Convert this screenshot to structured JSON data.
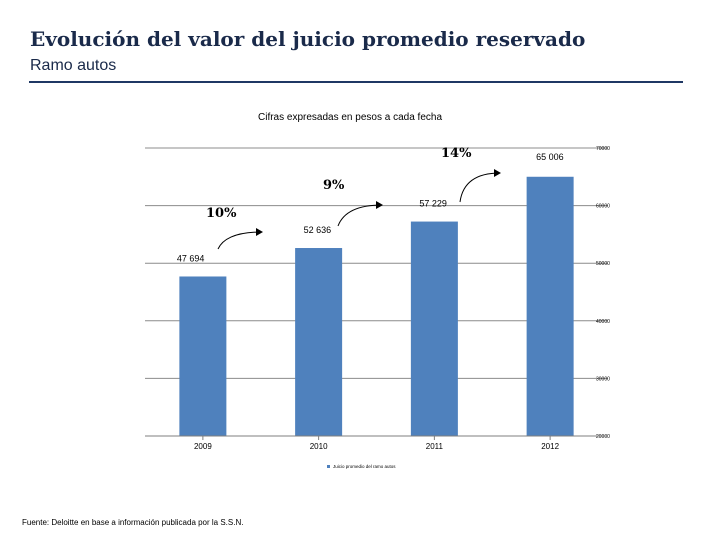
{
  "header": {
    "title": "Evolución del valor del juicio promedio reservado",
    "subtitle": "Ramo autos"
  },
  "footer": {
    "source": "Fuente: Deloitte en base a información publicada por la S.S.N."
  },
  "chart_data": {
    "type": "bar",
    "title": "Cifras expresadas en pesos a cada fecha",
    "categories": [
      "2009",
      "2010",
      "2011",
      "2012"
    ],
    "values": [
      47694,
      52636,
      57229,
      65006
    ],
    "value_labels": [
      "47 694",
      "52 636",
      "57 229",
      "65 006"
    ],
    "ylim": [
      20000,
      70000
    ],
    "yticks": [
      20000,
      30000,
      40000,
      50000,
      60000,
      70000
    ],
    "ytick_labels": [
      "20000",
      "30000",
      "40000",
      "50000",
      "60000",
      "70000"
    ],
    "grid": true,
    "bar_color": "#4f81bd",
    "legend_label": "Juicio promedio del ramo autos",
    "growth_annotations": [
      {
        "label": "10%",
        "from": "2009",
        "to": "2010"
      },
      {
        "label": "9%",
        "from": "2010",
        "to": "2011"
      },
      {
        "label": "14%",
        "from": "2011",
        "to": "2012"
      }
    ]
  }
}
